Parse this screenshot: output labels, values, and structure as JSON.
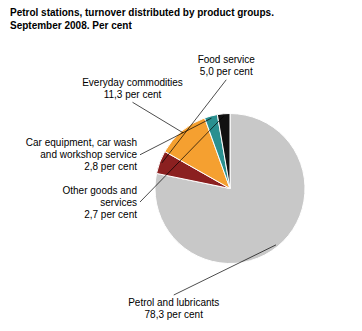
{
  "chart_data": {
    "type": "pie",
    "title": "Petrol stations, turnover distributed by product groups.\nSeptember 2008. Per cent",
    "categories": [
      "Petrol and lubricants",
      "Food service",
      "Everyday commodities",
      "Car equipment, car wash\nand workshop service",
      "Other goods and\nservices"
    ],
    "values": [
      78.3,
      5.0,
      11.3,
      2.8,
      2.7
    ],
    "value_labels": [
      "78,3 per cent",
      "5,0 per cent",
      "11,3 per cent",
      "2,8 per cent",
      "2,7 per cent"
    ],
    "colors": [
      "#c8c8c8",
      "#8b2020",
      "#f5a030",
      "#2a9090",
      "#111111"
    ],
    "data_labels": true
  }
}
